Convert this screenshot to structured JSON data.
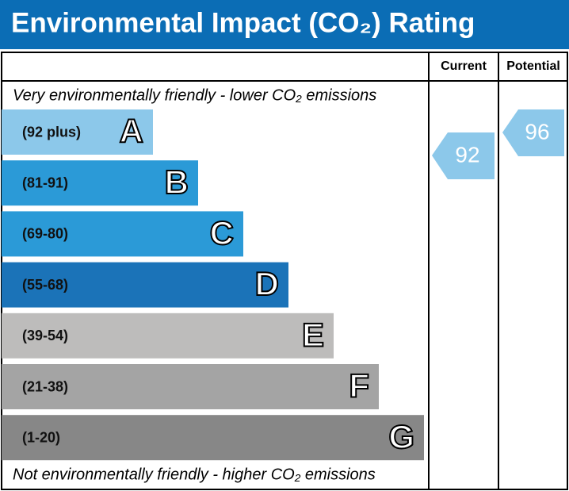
{
  "header": {
    "title": "Environmental Impact (CO₂) Rating"
  },
  "columns": [
    "Current",
    "Potential"
  ],
  "top_note": "Very environmentally friendly - lower CO₂ emissions",
  "bottom_note": "Not environmentally friendly - higher CO₂ emissions",
  "bands": [
    {
      "range": "(92 plus)",
      "letter": "A",
      "color": "#8cc8ea"
    },
    {
      "range": "(81-91)",
      "letter": "B",
      "color": "#2b9ad7"
    },
    {
      "range": "(69-80)",
      "letter": "C",
      "color": "#2b9ad7"
    },
    {
      "range": "(55-68)",
      "letter": "D",
      "color": "#1b73b8"
    },
    {
      "range": "(39-54)",
      "letter": "E",
      "color": "#bdbcbb"
    },
    {
      "range": "(21-38)",
      "letter": "F",
      "color": "#a4a4a4"
    },
    {
      "range": "(1-20)",
      "letter": "G",
      "color": "#878787"
    }
  ],
  "ratings": {
    "current": 92,
    "potential": 96,
    "color": "#8cc8ea"
  }
}
